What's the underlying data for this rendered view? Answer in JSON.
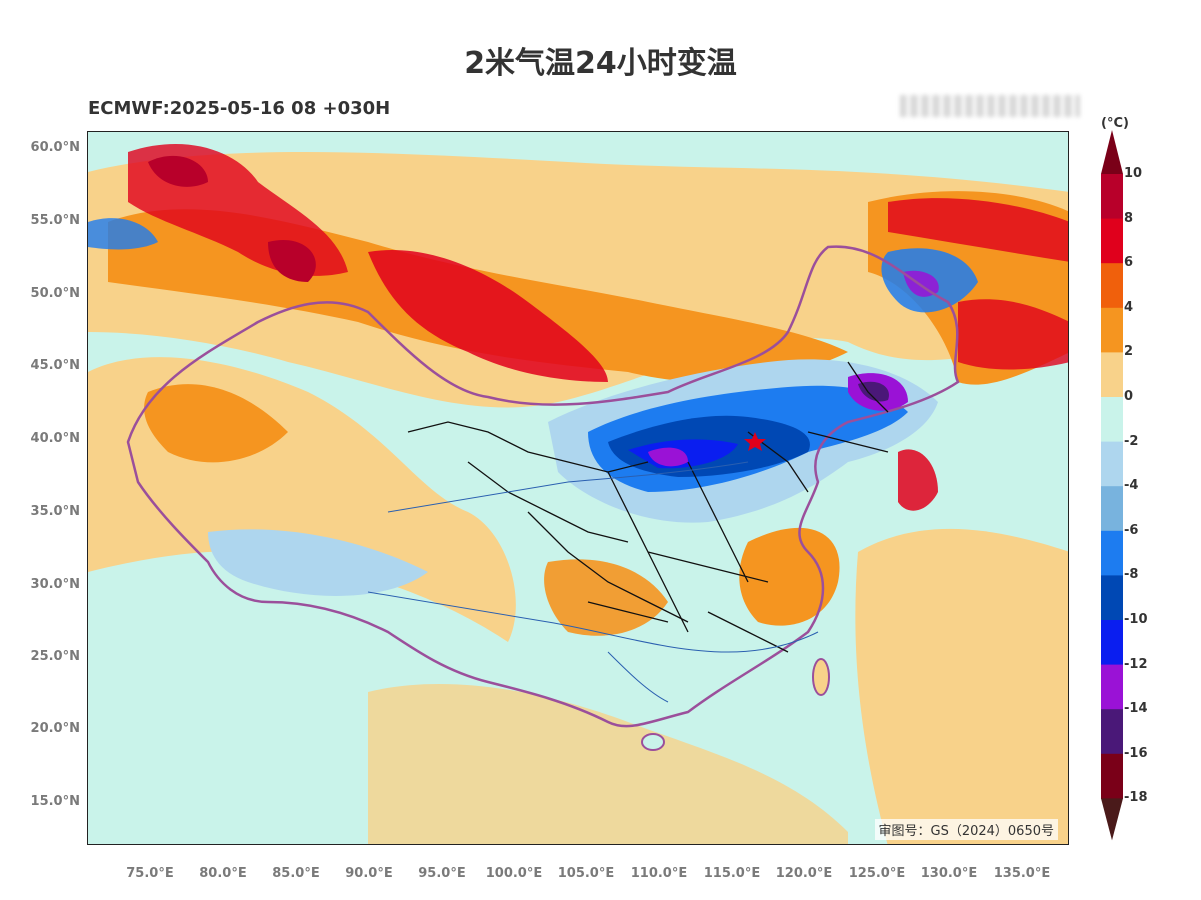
{
  "title": "2米气温24小时变温",
  "subtitle": "ECMWF:2025-05-16 08 +030H",
  "map_note": "审图号：GS（2024）0650号",
  "latitude_labels": [
    "60.0°N",
    "55.0°N",
    "50.0°N",
    "45.0°N",
    "40.0°N",
    "35.0°N",
    "30.0°N",
    "25.0°N",
    "20.0°N",
    "15.0°N"
  ],
  "longitude_labels": [
    "75.0°E",
    "80.0°E",
    "85.0°E",
    "90.0°E",
    "95.0°E",
    "100.0°E",
    "105.0°E",
    "110.0°E",
    "115.0°E",
    "120.0°E",
    "125.0°E",
    "130.0°E",
    "135.0°E"
  ],
  "colorbar": {
    "unit": "(°C)",
    "tick_labels": [
      "10",
      "8",
      "6",
      "4",
      "2",
      "0",
      "-2",
      "-4",
      "-6",
      "-8",
      "-10",
      "-12",
      "-14",
      "-16",
      "-18"
    ],
    "colors": [
      "#b8002a",
      "#e0001c",
      "#f0600c",
      "#f59520",
      "#f8d28a",
      "#c9f3ea",
      "#aed6ee",
      "#78b3de",
      "#1d7cf0",
      "#0048b4",
      "#0a1ef0",
      "#9a12d6",
      "#4a1878",
      "#7a0018"
    ],
    "top_arrow_color": "#7a0018",
    "bottom_arrow_color": "#4a1a1a"
  },
  "map_marker": "capital-star"
}
